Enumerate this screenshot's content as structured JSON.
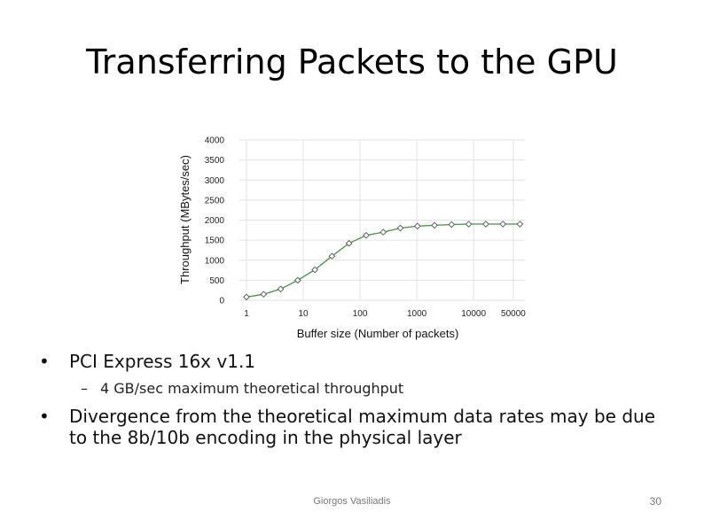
{
  "slide": {
    "title": "Transferring Packets to the GPU",
    "bullets": [
      {
        "text": "PCI Express 16x  v1.1",
        "sub": "4 GB/sec maximum theoretical throughput"
      },
      {
        "text": "Divergence from the theoretical maximum data rates may be due to the 8b/10b encoding in the physical layer"
      }
    ],
    "bullet_marker": "•",
    "sub_marker": "–",
    "footer": {
      "author": "Giorgos Vasiliadis",
      "page": "30"
    }
  },
  "chart_data": {
    "type": "line",
    "xlabel": "Buffer size (Number of packets)",
    "ylabel": "Throughput (MBytes/sec)",
    "x_scale": "log",
    "x_tick_values": [
      1,
      10,
      100,
      1000,
      10000,
      50000
    ],
    "x_tick_labels": [
      "1",
      "10",
      "100",
      "1000",
      "10000",
      "50000"
    ],
    "ylim": [
      0,
      4000
    ],
    "y_ticks": [
      0,
      500,
      1000,
      1500,
      2000,
      2500,
      3000,
      3500,
      4000
    ],
    "grid": true,
    "line_color": "#3a9a3a",
    "marker": "open-diamond",
    "series": [
      {
        "x": [
          1,
          2,
          4,
          8,
          16,
          32,
          64,
          128,
          256,
          512,
          1024,
          2048,
          4096,
          8192,
          16384,
          32768,
          65536
        ],
        "y": [
          80,
          150,
          280,
          500,
          760,
          1100,
          1420,
          1620,
          1700,
          1800,
          1850,
          1870,
          1890,
          1900,
          1900,
          1900,
          1900
        ]
      }
    ]
  }
}
